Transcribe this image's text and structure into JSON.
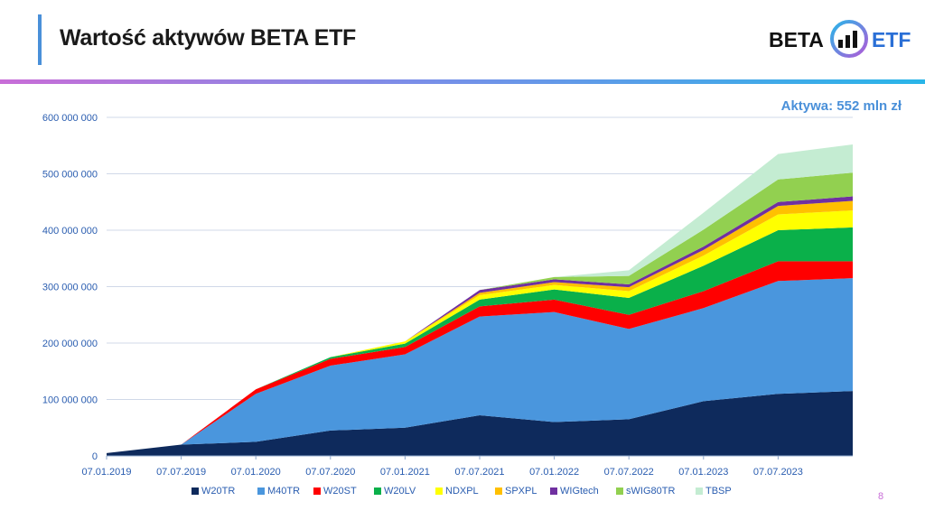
{
  "header": {
    "title": "Wartość aktywów BETA ETF",
    "logo_left": "BETA",
    "logo_right": "ETF",
    "assets_label": "Aktywa: 552 mln zł",
    "page_number": "8"
  },
  "colors": {
    "accent": "#4a90d9",
    "W20TR": "#0e2a5c",
    "M40TR": "#4a96dd",
    "W20ST": "#ff0000",
    "W20LV": "#0ab04a",
    "NDXPL": "#ffff00",
    "SPXPL": "#ffc000",
    "WIGtech": "#7030a0",
    "sWIG80TR": "#92d050",
    "TBSP": "#c4ecd2"
  },
  "chart_data": {
    "type": "area",
    "stacked": true,
    "x": [
      "07.01.2019",
      "07.07.2019",
      "07.01.2020",
      "07.07.2020",
      "07.01.2021",
      "07.07.2021",
      "07.01.2022",
      "07.07.2022",
      "07.01.2023",
      "07.07.2023",
      "07.11.2023"
    ],
    "xticks": [
      "07.01.2019",
      "07.07.2019",
      "07.01.2020",
      "07.07.2020",
      "07.01.2021",
      "07.07.2021",
      "07.01.2022",
      "07.07.2022",
      "07.01.2023",
      "07.07.2023"
    ],
    "yticks": [
      "0",
      "100 000 000",
      "200 000 000",
      "300 000 000",
      "400 000 000",
      "500 000 000",
      "600 000 000"
    ],
    "ylim": [
      0,
      600000000
    ],
    "grid": true,
    "legend": "bottom",
    "series": [
      {
        "name": "W20TR",
        "values": [
          5000000,
          20000000,
          25000000,
          45000000,
          50000000,
          72000000,
          60000000,
          65000000,
          97000000,
          110000000,
          115000000
        ]
      },
      {
        "name": "M40TR",
        "values": [
          0,
          0,
          85000000,
          115000000,
          130000000,
          175000000,
          195000000,
          160000000,
          165000000,
          200000000,
          200000000
        ]
      },
      {
        "name": "W20ST",
        "values": [
          0,
          0,
          8000000,
          12000000,
          13000000,
          18000000,
          22000000,
          25000000,
          30000000,
          35000000,
          30000000
        ]
      },
      {
        "name": "W20LV",
        "values": [
          0,
          0,
          0,
          3000000,
          6000000,
          12000000,
          18000000,
          30000000,
          45000000,
          55000000,
          60000000
        ]
      },
      {
        "name": "NDXPL",
        "values": [
          0,
          0,
          0,
          0,
          4000000,
          8000000,
          8000000,
          12000000,
          18000000,
          28000000,
          30000000
        ]
      },
      {
        "name": "SPXPL",
        "values": [
          0,
          0,
          0,
          0,
          0,
          4000000,
          5000000,
          7000000,
          10000000,
          15000000,
          17000000
        ]
      },
      {
        "name": "WIGtech",
        "values": [
          0,
          0,
          0,
          0,
          0,
          5000000,
          5000000,
          5000000,
          6000000,
          7000000,
          8000000
        ]
      },
      {
        "name": "sWIG80TR",
        "values": [
          0,
          0,
          0,
          0,
          0,
          0,
          4000000,
          15000000,
          30000000,
          40000000,
          42000000
        ]
      },
      {
        "name": "TBSP",
        "values": [
          0,
          0,
          0,
          0,
          0,
          0,
          0,
          10000000,
          30000000,
          45000000,
          50000000
        ]
      }
    ]
  }
}
